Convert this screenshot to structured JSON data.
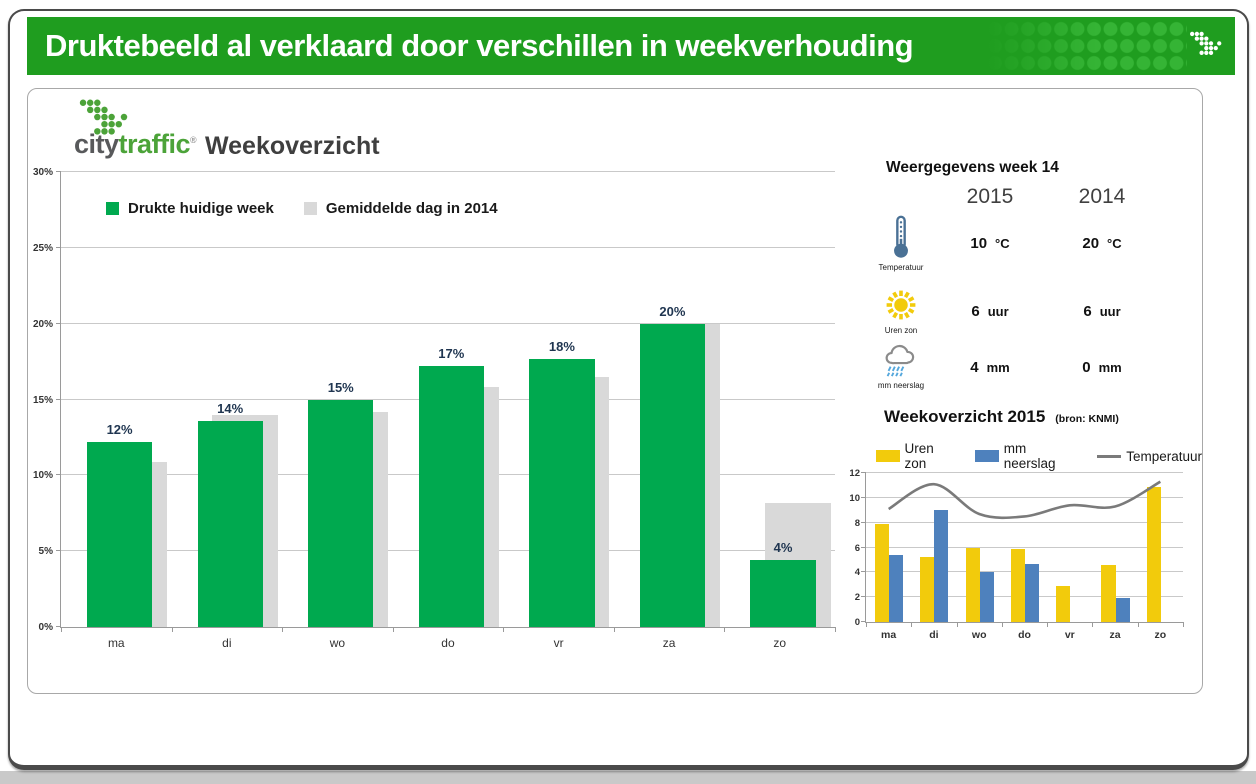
{
  "header": {
    "title": "Druktebeeld al verklaard door verschillen in weekverhouding"
  },
  "logo": {
    "brand_city": "city",
    "brand_traffic": "traffic",
    "trademark": "®",
    "page_title": "Weekoverzicht"
  },
  "weather_panel": {
    "title": "Weergegevens week 14",
    "columns": [
      "2015",
      "2014"
    ],
    "rows": [
      {
        "icon": "thermometer-icon",
        "label": "Temperatuur",
        "v2015": "10",
        "u2015": "°C",
        "v2014": "20",
        "u2014": "°C"
      },
      {
        "icon": "sun-icon",
        "label": "Uren zon",
        "v2015": "6",
        "u2015": "uur",
        "v2014": "6",
        "u2014": "uur"
      },
      {
        "icon": "rain-cloud-icon",
        "label": "mm neerslag",
        "v2015": "4",
        "u2015": "mm",
        "v2014": "0",
        "u2014": "mm"
      }
    ]
  },
  "colors": {
    "header_green": "#1f9d1f",
    "header_dot_green": "#35b435",
    "brand_green": "#4ca339",
    "brand_gray": "#58595b",
    "bar_green": "#00a94f",
    "bar_gray": "#d9d9d9",
    "sun_yellow": "#f2cb0c",
    "rain_blue": "#4e81bd",
    "temp_line_gray": "#7a7a7a"
  },
  "chart_data": [
    {
      "id": "week-overview-bars",
      "type": "bar",
      "categories": [
        "ma",
        "di",
        "wo",
        "do",
        "vr",
        "za",
        "zo"
      ],
      "series": [
        {
          "name": "Drukte huidige week",
          "color": "#00a94f",
          "values": [
            12.2,
            13.6,
            15.0,
            17.2,
            17.7,
            20.0,
            4.4
          ],
          "data_labels": [
            "12%",
            "14%",
            "15%",
            "17%",
            "18%",
            "20%",
            "4%"
          ]
        },
        {
          "name": "Gemiddelde dag in 2014",
          "color": "#d9d9d9",
          "values": [
            10.9,
            14.0,
            14.2,
            15.8,
            16.5,
            20.0,
            8.2
          ]
        }
      ],
      "ylim": [
        0,
        30
      ],
      "ytick_step": 5,
      "ytick_suffix": "%",
      "grid": true,
      "legend_position": "inside-top-left"
    },
    {
      "id": "weather-week-2015",
      "type": "bar+line",
      "title": "Weekoverzicht 2015",
      "subtitle": "(bron: KNMI)",
      "categories": [
        "ma",
        "di",
        "wo",
        "do",
        "vr",
        "za",
        "zo"
      ],
      "series": [
        {
          "name": "Uren zon",
          "type": "bar",
          "color": "#f2cb0c",
          "values": [
            7.9,
            5.2,
            6.0,
            5.9,
            2.9,
            4.6,
            10.9
          ]
        },
        {
          "name": "mm neerslag",
          "type": "bar",
          "color": "#4e81bd",
          "values": [
            5.4,
            9.0,
            4.0,
            4.7,
            0,
            1.9,
            0
          ]
        },
        {
          "name": "Temperatuur",
          "type": "line",
          "color": "#7a7a7a",
          "values": [
            9.1,
            11.1,
            8.7,
            8.5,
            9.4,
            9.3,
            11.3
          ]
        }
      ],
      "ylim": [
        0,
        12
      ],
      "ytick_step": 2,
      "ytick_suffix": "",
      "grid": true,
      "legend_position": "top"
    }
  ]
}
